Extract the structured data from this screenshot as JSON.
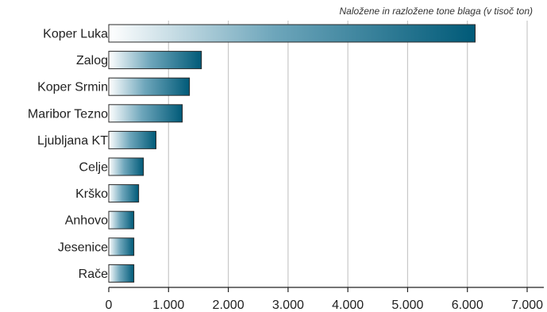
{
  "chart_data": {
    "type": "bar",
    "orientation": "horizontal",
    "subtitle": "Naložene in razložene tone blaga (v tisoč ton)",
    "title": "",
    "xlabel": "",
    "ylabel": "",
    "categories": [
      "Koper Luka",
      "Zalog",
      "Koper Srmin",
      "Maribor Tezno",
      "Ljubljana KT",
      "Celje",
      "Krško",
      "Anhovo",
      "Jesenice",
      "Rače"
    ],
    "values": [
      6130,
      1550,
      1350,
      1230,
      790,
      580,
      500,
      420,
      420,
      420
    ],
    "xlim": [
      0,
      7000
    ],
    "x_ticks": [
      0,
      1000,
      2000,
      3000,
      4000,
      5000,
      6000,
      7000
    ],
    "x_tick_labels": [
      "0",
      "1.000",
      "2.000",
      "3.000",
      "4.000",
      "5.000",
      "6.000",
      "7.000"
    ],
    "grid": "vertical",
    "legend": "none",
    "colors": {
      "bar_light": "#ffffff",
      "bar_dark": "#005a78",
      "bar_stroke": "#2a2a2a",
      "grid": "#c8c8c8",
      "axis": "#222222",
      "text": "#222222"
    }
  }
}
